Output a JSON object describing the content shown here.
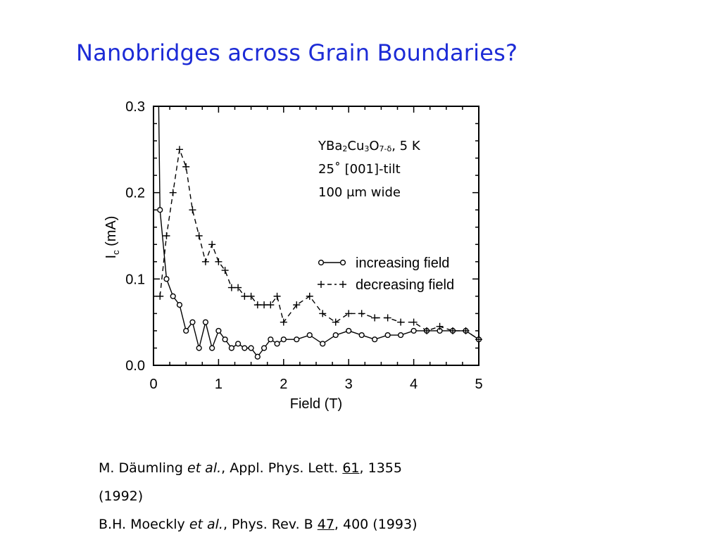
{
  "slide": {
    "title": "Nanobridges across Grain Boundaries?"
  },
  "annotation": {
    "line1_prefix": "YBa",
    "line1_sub1": "2",
    "line1_mid1": "Cu",
    "line1_sub2": "3",
    "line1_mid2": "O",
    "line1_sub3": "7-δ",
    "line1_suffix": ", 5 K",
    "line2": "25˚ [001]-tilt",
    "line3": "100 μm wide"
  },
  "references": [
    {
      "authors": "M. Däumling ",
      "etal": "et al.",
      "journal": ", Appl. Phys. Lett. ",
      "volume": "61",
      "rest": ", 1355",
      "year": "(1992)"
    },
    {
      "authors": "B.H. Moeckly ",
      "etal": "et al.",
      "journal": ", Phys. Rev. B ",
      "volume": "47",
      "rest": ", 400 (1993)"
    }
  ],
  "chart_data": {
    "type": "line",
    "xlabel": "Field (T)",
    "ylabel": "I",
    "ylabel_sub": "c",
    "ylabel_suffix": " (mA)",
    "xlim": [
      0,
      5
    ],
    "ylim": [
      0,
      0.3
    ],
    "xticks": [
      "0",
      "1",
      "2",
      "3",
      "4",
      "5"
    ],
    "yticks": [
      "0.0",
      "0.1",
      "0.2",
      "0.3"
    ],
    "grid": false,
    "legend_position": "center-right",
    "legend": [
      {
        "symbol": "o—o",
        "label": "increasing field"
      },
      {
        "symbol": "+– +",
        "label": "decreasing field"
      }
    ],
    "series": [
      {
        "name": "increasing field",
        "marker": "circle",
        "dash": "solid",
        "initial_spike": {
          "x": [
            0.08,
            0.1
          ],
          "y": [
            0.3,
            0.18
          ]
        },
        "x": [
          0.1,
          0.2,
          0.3,
          0.4,
          0.5,
          0.6,
          0.7,
          0.8,
          0.9,
          1.0,
          1.1,
          1.2,
          1.3,
          1.4,
          1.5,
          1.6,
          1.7,
          1.8,
          1.9,
          2.0,
          2.2,
          2.4,
          2.6,
          2.8,
          3.0,
          3.2,
          3.4,
          3.6,
          3.8,
          4.0,
          4.2,
          4.4,
          4.6,
          4.8,
          5.0
        ],
        "y": [
          0.18,
          0.1,
          0.08,
          0.07,
          0.04,
          0.05,
          0.02,
          0.05,
          0.02,
          0.04,
          0.03,
          0.02,
          0.025,
          0.02,
          0.02,
          0.01,
          0.02,
          0.03,
          0.025,
          0.03,
          0.03,
          0.035,
          0.025,
          0.035,
          0.04,
          0.035,
          0.03,
          0.035,
          0.035,
          0.04,
          0.04,
          0.04,
          0.04,
          0.04,
          0.03
        ]
      },
      {
        "name": "decreasing field",
        "marker": "plus",
        "dash": "dashed",
        "x": [
          0.1,
          0.2,
          0.3,
          0.4,
          0.5,
          0.6,
          0.7,
          0.8,
          0.9,
          1.0,
          1.1,
          1.2,
          1.3,
          1.4,
          1.5,
          1.6,
          1.7,
          1.8,
          1.9,
          2.0,
          2.2,
          2.4,
          2.6,
          2.8,
          3.0,
          3.2,
          3.4,
          3.6,
          3.8,
          4.0,
          4.2,
          4.4,
          4.6,
          4.8,
          5.0
        ],
        "y": [
          0.08,
          0.15,
          0.2,
          0.25,
          0.23,
          0.18,
          0.15,
          0.12,
          0.14,
          0.12,
          0.11,
          0.09,
          0.09,
          0.08,
          0.08,
          0.07,
          0.07,
          0.07,
          0.08,
          0.05,
          0.07,
          0.08,
          0.06,
          0.05,
          0.06,
          0.06,
          0.055,
          0.055,
          0.05,
          0.05,
          0.04,
          0.045,
          0.04,
          0.04,
          0.03
        ]
      }
    ]
  }
}
